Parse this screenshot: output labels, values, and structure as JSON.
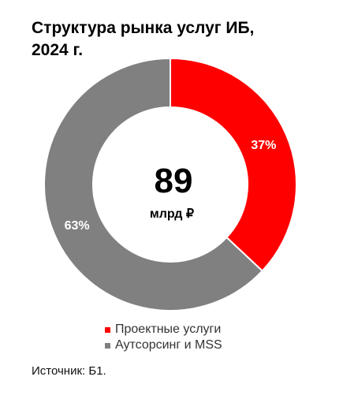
{
  "header": {
    "title_line1": "Структура рынка услуг ИБ,",
    "title_line2": "2024 г."
  },
  "chart_data": {
    "type": "pie",
    "subtype": "donut",
    "title": "Структура рынка услуг ИБ, 2024 г.",
    "center_value": "89",
    "center_unit": "млрд ₽",
    "series": [
      {
        "name": "Проектные услуги",
        "value": 37,
        "label": "37%",
        "color": "#ff0000"
      },
      {
        "name": "Аутсорсинг и MSS",
        "value": 63,
        "label": "63%",
        "color": "#808080"
      }
    ],
    "legend_position": "bottom"
  },
  "footer": {
    "source": "Источник: Б1."
  }
}
